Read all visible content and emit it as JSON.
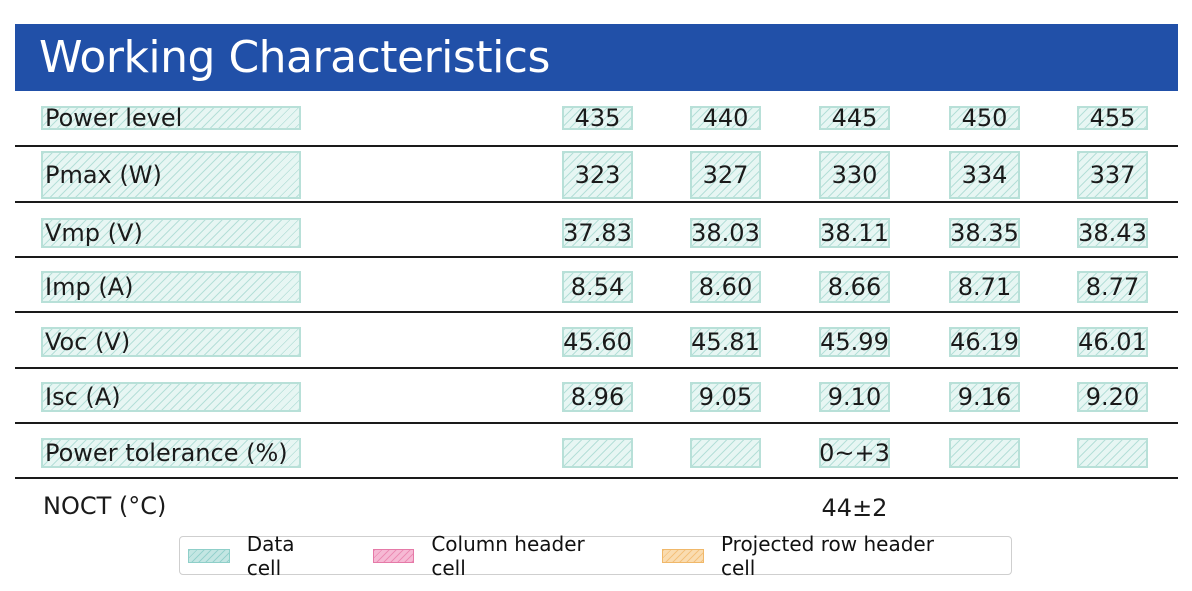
{
  "title": "Working Characteristics",
  "rows": [
    {
      "label": "Power level",
      "values": [
        "435",
        "440",
        "445",
        "450",
        "455"
      ]
    },
    {
      "label": "Pmax (W)",
      "values": [
        "323",
        "327",
        "330",
        "334",
        "337"
      ]
    },
    {
      "label": "Vmp (V)",
      "values": [
        "37.83",
        "38.03",
        "38.11",
        "38.35",
        "38.43"
      ]
    },
    {
      "label": "Imp (A)",
      "values": [
        "8.54",
        "8.60",
        "8.66",
        "8.71",
        "8.77"
      ]
    },
    {
      "label": "Voc (V)",
      "values": [
        "45.60",
        "45.81",
        "45.99",
        "46.19",
        "46.01"
      ]
    },
    {
      "label": "Isc (A)",
      "values": [
        "8.96",
        "9.05",
        "9.10",
        "9.16",
        "9.20"
      ]
    },
    {
      "label": "Power tolerance (%)",
      "values": [
        "",
        "",
        "0~+3",
        "",
        ""
      ]
    },
    {
      "label": "NOCT (°C)",
      "values": [
        "",
        "",
        "44±2",
        "",
        ""
      ]
    }
  ],
  "legend": [
    {
      "label": "Data cell",
      "color": "#c4e6e3"
    },
    {
      "label": "Column header cell",
      "color": "#f6b9d4"
    },
    {
      "label": "Projected row header cell",
      "color": "#fadcb0"
    }
  ],
  "colors": {
    "header_band": "#2150a8",
    "data_hatch": "#b8e0d8"
  }
}
